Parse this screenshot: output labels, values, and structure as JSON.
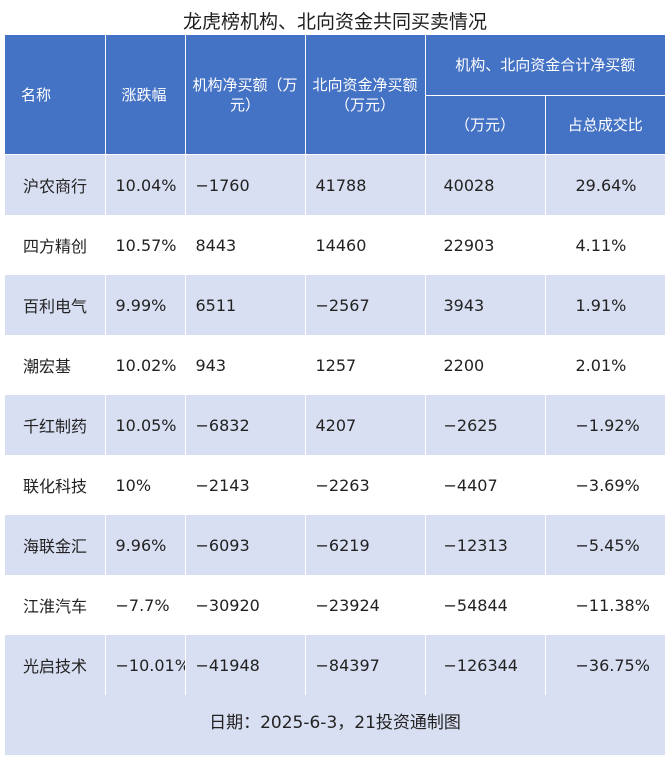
{
  "title": "龙虎榜机构、北向资金共同买卖情况",
  "header": {
    "name": "名称",
    "change": "涨跌幅",
    "inst_net_buy": "机构净买额（万元）",
    "north_net_buy": "北向资金净买额（万元）",
    "combined_group": "机构、北向资金合计净买额",
    "combined_amount": "（万元）",
    "turnover_ratio": "占总成交比"
  },
  "chart_data": {
    "type": "table",
    "title": "龙虎榜机构、北向资金共同买卖情况",
    "columns": [
      "名称",
      "涨跌幅",
      "机构净买额（万元）",
      "北向资金净买额（万元）",
      "机构、北向资金合计净买额（万元）",
      "占总成交比"
    ],
    "rows": [
      [
        "沪农商行",
        "10.04%",
        "−1760",
        "41788",
        "40028",
        "29.64%"
      ],
      [
        "四方精创",
        "10.57%",
        "8443",
        "14460",
        "22903",
        "4.11%"
      ],
      [
        "百利电气",
        "9.99%",
        "6511",
        "−2567",
        "3943",
        "1.91%"
      ],
      [
        "潮宏基",
        "10.02%",
        "943",
        "1257",
        "2200",
        "2.01%"
      ],
      [
        "千红制药",
        "10.05%",
        "−6832",
        "4207",
        "−2625",
        "−1.92%"
      ],
      [
        "联化科技",
        "10%",
        "−2143",
        "−2263",
        "−4407",
        "−3.69%"
      ],
      [
        "海联金汇",
        "9.96%",
        "−6093",
        "−6219",
        "−12313",
        "−5.45%"
      ],
      [
        "江淮汽车",
        "−7.7%",
        "−30920",
        "−23924",
        "−54844",
        "−11.38%"
      ],
      [
        "光启技术",
        "−10.01%",
        "−41948",
        "−84397",
        "−126344",
        "−36.75%"
      ]
    ]
  },
  "footer": "日期：2025-6-3，21投资通制图",
  "colors": {
    "header_bg": "#4472c4",
    "row_alt_bg": "#d9dff2",
    "row_bg": "#ffffff"
  }
}
